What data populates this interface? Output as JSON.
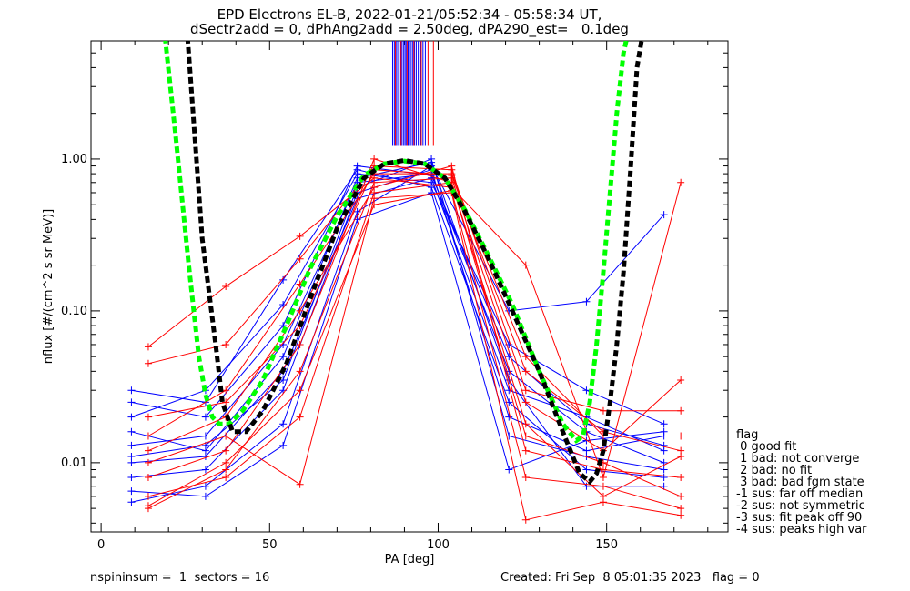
{
  "title_line1": "EPD Electrons EL-B, 2022-01-21/05:52:34 - 05:58:34 UT,",
  "title_line2": "dSectr2add = 0, dPhAng2add = 2.50deg, dPA290_est=   0.1deg",
  "footer_left": "nspininsum =  1  sectors = 16",
  "footer_right": "Created: Fri Sep  8 05:01:35 2023   flag = 0",
  "legend": {
    "title": "flag",
    "items": [
      " 0 good fit",
      " 1 bad: not converge",
      " 2 bad: no fit",
      " 3 bad: bad fgm state",
      "-1 sus: far off median",
      "-2 sus: not symmetric",
      "-3 sus: fit peak off 90",
      "-4 sus: peaks high var"
    ]
  },
  "colors": {
    "blue": "#0000ff",
    "red": "#ff0000",
    "black": "#000000",
    "green": "#00ff00"
  },
  "chart_data": {
    "type": "line",
    "xlabel": "PA [deg]",
    "ylabel": "nflux [#/(cm^2 s sr MeV)]",
    "xlim": [
      -3,
      186
    ],
    "ylim": [
      0.0035,
      6.0
    ],
    "yscale": "log",
    "x_ticks": [
      0,
      50,
      100,
      150
    ],
    "x_tick_labels": [
      "0",
      "50",
      "100",
      "150"
    ],
    "y_ticks": [
      0.01,
      0.1,
      1.0
    ],
    "y_tick_labels": [
      "0.01",
      "0.10",
      "1.00"
    ],
    "series": [
      {
        "color": "blue",
        "x": [
          9,
          31,
          54,
          76,
          98,
          121,
          144,
          167
        ],
        "y": [
          0.01,
          0.011,
          0.04,
          0.55,
          0.75,
          0.03,
          0.02,
          0.012
        ]
      },
      {
        "color": "blue",
        "x": [
          9,
          31,
          54,
          76,
          98,
          121,
          144,
          167
        ],
        "y": [
          0.013,
          0.015,
          0.06,
          0.7,
          0.8,
          0.04,
          0.016,
          0.01
        ]
      },
      {
        "color": "blue",
        "x": [
          9,
          31,
          54,
          76,
          98,
          121,
          144,
          167
        ],
        "y": [
          0.0055,
          0.007,
          0.018,
          0.45,
          0.9,
          0.1,
          0.115,
          0.43
        ]
      },
      {
        "color": "blue",
        "x": [
          9,
          31,
          54,
          76,
          98,
          121,
          144,
          167
        ],
        "y": [
          0.02,
          0.03,
          0.11,
          0.8,
          0.7,
          0.06,
          0.03,
          0.018
        ]
      },
      {
        "color": "blue",
        "x": [
          9,
          31,
          54,
          76,
          98,
          121,
          144,
          167
        ],
        "y": [
          0.03,
          0.025,
          0.16,
          0.85,
          0.65,
          0.025,
          0.009,
          0.008
        ]
      },
      {
        "color": "blue",
        "x": [
          9,
          31,
          54,
          76,
          98,
          121,
          144,
          167
        ],
        "y": [
          0.008,
          0.009,
          0.03,
          0.6,
          0.85,
          0.02,
          0.012,
          0.015
        ]
      },
      {
        "color": "blue",
        "x": [
          9,
          31,
          54,
          76,
          98,
          121,
          144,
          167
        ],
        "y": [
          0.016,
          0.012,
          0.05,
          0.75,
          0.95,
          0.035,
          0.007,
          0.007
        ]
      },
      {
        "color": "blue",
        "x": [
          9,
          31,
          54,
          76,
          98,
          121,
          144,
          167
        ],
        "y": [
          0.0065,
          0.006,
          0.013,
          0.4,
          0.6,
          0.009,
          0.014,
          0.016
        ]
      },
      {
        "color": "blue",
        "x": [
          9,
          31,
          54,
          76,
          98,
          121,
          144,
          167
        ],
        "y": [
          0.025,
          0.02,
          0.08,
          0.9,
          0.78,
          0.05,
          0.018,
          0.013
        ]
      },
      {
        "color": "blue",
        "x": [
          9,
          31,
          54,
          76,
          98,
          121,
          144,
          167
        ],
        "y": [
          0.011,
          0.013,
          0.035,
          0.65,
          1.0,
          0.015,
          0.011,
          0.009
        ]
      },
      {
        "color": "red",
        "x": [
          14,
          37,
          59,
          81,
          104,
          126,
          149,
          172
        ],
        "y": [
          0.006,
          0.008,
          0.02,
          0.6,
          0.7,
          0.015,
          0.01,
          0.006
        ]
      },
      {
        "color": "red",
        "x": [
          14,
          37,
          59,
          81,
          104,
          126,
          149,
          172
        ],
        "y": [
          0.058,
          0.145,
          0.31,
          0.75,
          0.65,
          0.2,
          0.008,
          0.7
        ]
      },
      {
        "color": "red",
        "x": [
          14,
          37,
          59,
          81,
          104,
          126,
          149,
          172
        ],
        "y": [
          0.045,
          0.06,
          0.22,
          0.9,
          0.85,
          0.03,
          0.022,
          0.022
        ]
      },
      {
        "color": "red",
        "x": [
          14,
          37,
          59,
          81,
          104,
          126,
          149,
          172
        ],
        "y": [
          0.015,
          0.03,
          0.15,
          0.8,
          0.8,
          0.05,
          0.015,
          0.015
        ]
      },
      {
        "color": "red",
        "x": [
          14,
          37,
          59,
          81,
          104,
          126,
          149,
          172
        ],
        "y": [
          0.01,
          0.015,
          0.0072,
          0.55,
          0.6,
          0.0042,
          0.0055,
          0.0045
        ]
      },
      {
        "color": "red",
        "x": [
          14,
          37,
          59,
          81,
          104,
          126,
          149,
          172
        ],
        "y": [
          0.005,
          0.009,
          0.04,
          0.7,
          0.75,
          0.025,
          0.012,
          0.035
        ]
      },
      {
        "color": "red",
        "x": [
          14,
          37,
          59,
          81,
          104,
          126,
          149,
          172
        ],
        "y": [
          0.008,
          0.012,
          0.06,
          1.0,
          0.7,
          0.018,
          0.006,
          0.011
        ]
      },
      {
        "color": "red",
        "x": [
          14,
          37,
          59,
          81,
          104,
          126,
          149,
          172
        ],
        "y": [
          0.012,
          0.02,
          0.1,
          0.65,
          0.9,
          0.012,
          0.009,
          0.008
        ]
      },
      {
        "color": "red",
        "x": [
          14,
          37,
          59,
          81,
          104,
          126,
          149,
          172
        ],
        "y": [
          0.0052,
          0.01,
          0.03,
          0.5,
          0.62,
          0.008,
          0.007,
          0.005
        ]
      },
      {
        "color": "red",
        "x": [
          14,
          37,
          59,
          81,
          104,
          126,
          149,
          172
        ],
        "y": [
          0.02,
          0.025,
          0.08,
          0.85,
          0.78,
          0.04,
          0.016,
          0.012
        ]
      }
    ],
    "fit_black": {
      "color": "black",
      "x": [
        25,
        30,
        34,
        36,
        39,
        43,
        48,
        55,
        62,
        70,
        78,
        84,
        90,
        96,
        102,
        108,
        115,
        122,
        130,
        137,
        142,
        145,
        147,
        149,
        151,
        153,
        155,
        157,
        159,
        162
      ],
      "y": [
        10,
        0.3,
        0.06,
        0.025,
        0.016,
        0.016,
        0.022,
        0.045,
        0.12,
        0.35,
        0.75,
        0.93,
        0.98,
        0.93,
        0.75,
        0.45,
        0.22,
        0.1,
        0.04,
        0.016,
        0.0085,
        0.0075,
        0.0085,
        0.012,
        0.025,
        0.06,
        0.18,
        0.8,
        4.0,
        10
      ]
    },
    "fit_green": {
      "color": "green",
      "x": [
        18,
        22,
        26,
        29,
        31,
        33,
        35,
        38,
        42,
        48,
        55,
        62,
        70,
        78,
        84,
        90,
        96,
        102,
        108,
        115,
        122,
        130,
        137,
        141,
        143,
        145,
        147,
        149,
        151,
        153,
        155,
        158
      ],
      "y": [
        10,
        1.5,
        0.2,
        0.05,
        0.028,
        0.02,
        0.018,
        0.018,
        0.022,
        0.035,
        0.08,
        0.19,
        0.42,
        0.78,
        0.93,
        0.97,
        0.93,
        0.75,
        0.46,
        0.23,
        0.11,
        0.04,
        0.018,
        0.014,
        0.015,
        0.025,
        0.06,
        0.18,
        0.6,
        2.0,
        5.0,
        10
      ]
    },
    "peak_lines": {
      "blue_x": [
        86.5,
        87.0,
        87.5,
        88.0,
        88.4,
        88.9,
        89.3,
        89.8,
        90.2,
        90.6,
        91.1,
        91.5,
        92.0,
        92.5,
        93.0,
        93.5,
        94.1,
        94.8,
        95.5,
        96.2
      ],
      "red_x": [
        87.3,
        89.0,
        90.8,
        92.8,
        95.0,
        97.0,
        98.6
      ],
      "y_from": 1.22
    }
  }
}
